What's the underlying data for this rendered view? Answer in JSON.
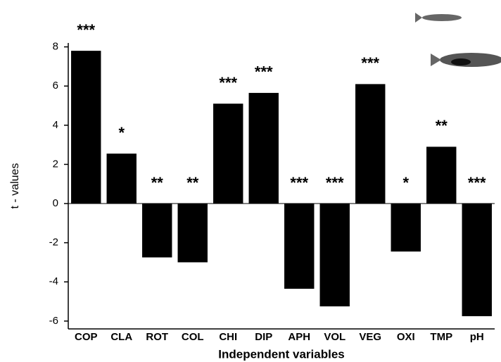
{
  "chart_data": {
    "type": "bar",
    "y_label": "t - values",
    "x_label": "Independent variables",
    "categories": [
      "COP",
      "CLA",
      "ROT",
      "COL",
      "CHI",
      "DIP",
      "APH",
      "VOL",
      "VEG",
      "OXI",
      "TMP",
      "pH"
    ],
    "values": [
      7.8,
      2.55,
      -2.75,
      -3.0,
      5.1,
      5.65,
      -4.35,
      -5.25,
      6.1,
      -2.45,
      2.9,
      -5.75
    ],
    "annotations": [
      "***",
      "*",
      "**",
      "**",
      "***",
      "***",
      "***",
      "***",
      "***",
      "*",
      "**",
      "***"
    ],
    "color": "#000000",
    "ylim": [
      -6.4,
      8.2
    ],
    "yticks": [
      -6,
      -4,
      -2,
      0,
      2,
      4,
      6,
      8
    ]
  }
}
